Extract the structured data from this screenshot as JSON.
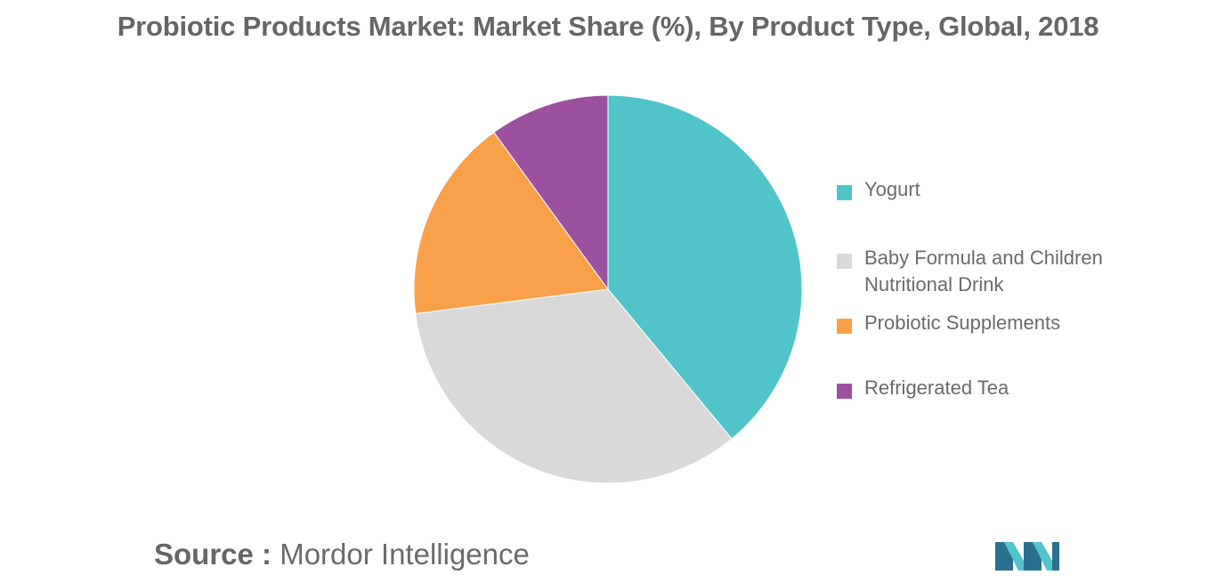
{
  "title": "Probiotic Products Market: Market Share (%), By Product Type, Global, 2018",
  "source": {
    "prefix": "Source :",
    "name": "Mordor Intelligence"
  },
  "chart_data": {
    "type": "pie",
    "title": "Probiotic Products Market: Market Share (%), By Product Type, Global, 2018",
    "start_angle_deg": 0,
    "direction": "clockwise",
    "legend_position": "right",
    "slices": [
      {
        "label": "Yogurt",
        "value": 39,
        "color": "#51c4ca"
      },
      {
        "label": "Baby Formula and Children Nutritional Drink",
        "value": 34,
        "color": "#d9d9d9"
      },
      {
        "label": "Probiotic Supplements",
        "value": 17,
        "color": "#f9a04a"
      },
      {
        "label": "Refrigerated Tea",
        "value": 10,
        "color": "#9b51a0"
      }
    ]
  },
  "logo": {
    "icon": "mordor-intelligence-logo",
    "colors": [
      "#2b6f8f",
      "#51c4ca"
    ]
  }
}
